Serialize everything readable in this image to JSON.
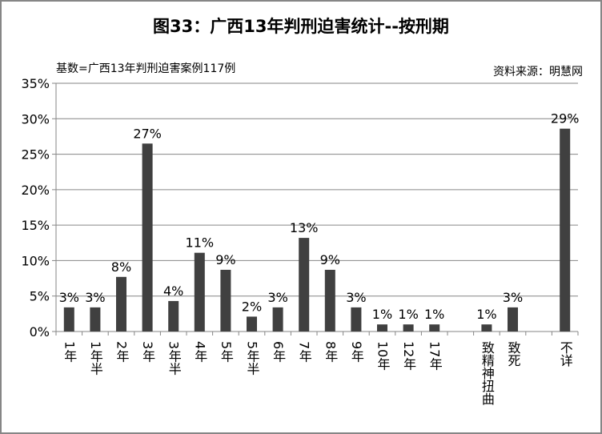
{
  "chart_data": {
    "type": "bar",
    "title": "图33：广西13年判刑迫害统计--按刑期",
    "subtitle": "基数=广西13年判刑迫害案例117例",
    "source": "资料来源：明慧网",
    "xlabel": "",
    "ylabel": "",
    "ylim": [
      0,
      35
    ],
    "yticks": [
      "0%",
      "5%",
      "10%",
      "15%",
      "20%",
      "25%",
      "30%",
      "35%"
    ],
    "grid": true,
    "color": "#404040",
    "categories": [
      "1年",
      "1年半",
      "2年",
      "3年",
      "3年半",
      "4年",
      "5年",
      "5年半",
      "6年",
      "7年",
      "8年",
      "9年",
      "10年",
      "12年",
      "17年",
      "",
      "致精神扭曲",
      "致死",
      "",
      "不详"
    ],
    "values": [
      3.4,
      3.4,
      7.7,
      26.5,
      4.3,
      11.1,
      8.7,
      2.1,
      3.4,
      13.2,
      8.7,
      3.4,
      1.0,
      1.0,
      1.0,
      null,
      1.0,
      3.4,
      null,
      28.6
    ],
    "data_labels": [
      "3%",
      "3%",
      "8%",
      "27%",
      "4%",
      "11%",
      "9%",
      "2%",
      "3%",
      "13%",
      "9%",
      "3%",
      "1%",
      "1%",
      "1%",
      "",
      "1%",
      "3%",
      "",
      "29%"
    ]
  }
}
